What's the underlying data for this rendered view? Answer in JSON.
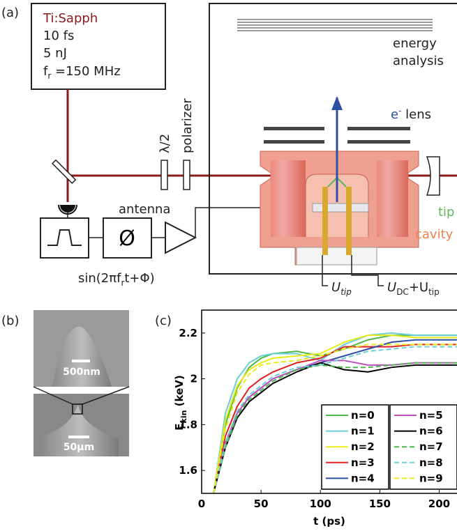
{
  "panel_labels": [
    "(a)",
    "(b)",
    "(c)"
  ],
  "diagram": {
    "laser": {
      "name": "Ti:Sapph",
      "lines": [
        "10 fs",
        "5 nJ"
      ],
      "rep_rate": {
        "symbol": "f",
        "sub": "r",
        "value": " =150 MHz"
      }
    },
    "waveplate": "λ/2",
    "polarizer": "polarizer",
    "phase_symbol": "Ø",
    "modulation": {
      "pre": "sin(2πf",
      "sub": "r",
      "post": "t+Φ)"
    },
    "antenna": "antenna",
    "analyzer": [
      "energy",
      "analysis"
    ],
    "lens": {
      "sup_base": "e",
      "sup": "-",
      "text": " lens"
    },
    "tip": "tip",
    "cavity": "cavity",
    "u_tip": {
      "base": "U",
      "sub": "tip"
    },
    "u_dc": {
      "base": "U",
      "sub": "DC",
      "mid": "+U",
      "sub2": "tip"
    }
  },
  "images": {
    "scale_top": "500nm",
    "scale_bottom": "50µm"
  },
  "chart_data": {
    "type": "line",
    "x_label": "t (ps)",
    "y_label": {
      "base": "E",
      "sub": "kin",
      "unit": " (keV)"
    },
    "x": [
      10,
      20,
      30,
      40,
      50,
      60,
      80,
      100,
      120,
      140,
      160,
      180,
      200,
      215
    ],
    "xlim": [
      0,
      215
    ],
    "xticks": [
      0,
      50,
      100,
      150,
      200
    ],
    "ylim": [
      1.5,
      2.3
    ],
    "yticks": [
      1.6,
      1.8,
      2,
      2.2
    ],
    "legend": "lower right",
    "legend_columns": 2,
    "series": [
      {
        "name": "n=0",
        "color": "#4cb84c",
        "style": "solid",
        "values": [
          1.5,
          1.8,
          1.96,
          2.05,
          2.09,
          2.11,
          2.12,
          2.1,
          2.13,
          2.17,
          2.19,
          2.19,
          2.19,
          2.19
        ]
      },
      {
        "name": "n=1",
        "color": "#6ad0d8",
        "style": "solid",
        "values": [
          1.5,
          1.85,
          2.0,
          2.07,
          2.1,
          2.11,
          2.11,
          2.08,
          2.15,
          2.19,
          2.2,
          2.19,
          2.19,
          2.19
        ]
      },
      {
        "name": "n=2",
        "color": "#eaea1a",
        "style": "solid",
        "values": [
          1.5,
          1.82,
          1.97,
          2.04,
          2.07,
          2.09,
          2.1,
          2.11,
          2.16,
          2.19,
          2.19,
          2.18,
          2.18,
          2.18
        ]
      },
      {
        "name": "n=3",
        "color": "#e02020",
        "style": "solid",
        "values": [
          1.5,
          1.75,
          1.88,
          1.96,
          2.0,
          2.03,
          2.07,
          2.09,
          2.14,
          2.14,
          2.14,
          2.15,
          2.15,
          2.15
        ]
      },
      {
        "name": "n=4",
        "color": "#2d4fa6",
        "style": "solid",
        "values": [
          1.5,
          1.72,
          1.85,
          1.92,
          1.96,
          2.0,
          2.04,
          2.07,
          2.1,
          2.13,
          2.16,
          2.17,
          2.17,
          2.17
        ]
      },
      {
        "name": "n=5",
        "color": "#c04fc0",
        "style": "solid",
        "values": [
          1.5,
          1.72,
          1.85,
          1.92,
          1.96,
          2.0,
          2.04,
          2.08,
          2.08,
          2.06,
          2.06,
          2.07,
          2.07,
          2.07
        ]
      },
      {
        "name": "n=6",
        "color": "#000000",
        "style": "solid",
        "values": [
          1.5,
          1.7,
          1.83,
          1.9,
          1.94,
          1.98,
          2.03,
          2.07,
          2.04,
          2.03,
          2.05,
          2.06,
          2.06,
          2.06
        ]
      },
      {
        "name": "n=7",
        "color": "#4cb84c",
        "style": "dashed",
        "values": [
          1.5,
          1.7,
          1.84,
          1.91,
          1.95,
          1.99,
          2.04,
          2.06,
          2.05,
          2.05,
          2.06,
          2.07,
          2.07,
          2.07
        ]
      },
      {
        "name": "n=8",
        "color": "#6ad0d8",
        "style": "dashed",
        "values": [
          1.5,
          1.72,
          1.86,
          1.93,
          1.97,
          2.01,
          2.05,
          2.06,
          2.09,
          2.12,
          2.13,
          2.14,
          2.14,
          2.14
        ]
      },
      {
        "name": "n=9",
        "color": "#eaea1a",
        "style": "dashed",
        "values": [
          1.5,
          1.78,
          1.94,
          2.02,
          2.06,
          2.07,
          2.08,
          2.1,
          2.13,
          2.15,
          2.15,
          2.15,
          2.15,
          2.15
        ]
      }
    ]
  }
}
